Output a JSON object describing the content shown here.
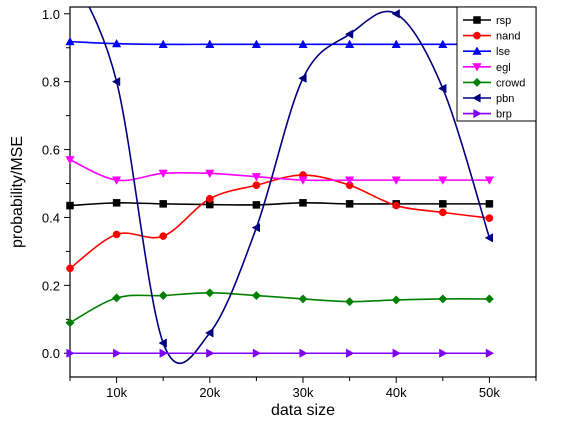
{
  "chart_data": {
    "type": "line",
    "xlabel": "data size",
    "ylabel": "probability/MSE",
    "xlim": [
      5000,
      55000
    ],
    "ylim": [
      -0.07,
      1.02
    ],
    "x_ticks": [
      10000,
      20000,
      30000,
      40000,
      50000
    ],
    "x_tick_labels": [
      "10k",
      "20k",
      "30k",
      "40k",
      "50k"
    ],
    "y_ticks": [
      0.0,
      0.2,
      0.4,
      0.6,
      0.8,
      1.0
    ],
    "y_tick_labels": [
      "0.0",
      "0.2",
      "0.4",
      "0.6",
      "0.8",
      "1.0"
    ],
    "grid": false,
    "legend_position": "top-right",
    "x": [
      5000,
      10000,
      15000,
      20000,
      25000,
      30000,
      35000,
      40000,
      45000,
      50000
    ],
    "series": [
      {
        "name": "rsp",
        "color": "#000000",
        "marker": "square",
        "values": [
          0.435,
          0.443,
          0.44,
          0.438,
          0.437,
          0.443,
          0.44,
          0.44,
          0.44,
          0.44
        ]
      },
      {
        "name": "nand",
        "color": "#ff0000",
        "marker": "circle",
        "values": [
          0.25,
          0.35,
          0.345,
          0.455,
          0.495,
          0.525,
          0.495,
          0.435,
          0.415,
          0.398
        ]
      },
      {
        "name": "lse",
        "color": "#0000ff",
        "marker": "triangle-up",
        "values": [
          0.918,
          0.912,
          0.91,
          0.91,
          0.91,
          0.91,
          0.91,
          0.91,
          0.91,
          0.91
        ]
      },
      {
        "name": "egl",
        "color": "#ff00ff",
        "marker": "triangle-down",
        "values": [
          0.57,
          0.51,
          0.53,
          0.53,
          0.52,
          0.51,
          0.51,
          0.51,
          0.51,
          0.51
        ]
      },
      {
        "name": "crowd",
        "color": "#008000",
        "marker": "diamond",
        "values": [
          0.09,
          0.163,
          0.17,
          0.178,
          0.17,
          0.16,
          0.152,
          0.157,
          0.16,
          0.16
        ]
      },
      {
        "name": "pbn",
        "color": "#000080",
        "marker": "triangle-left",
        "values": [
          1.13,
          0.8,
          0.03,
          0.06,
          0.37,
          0.81,
          0.94,
          1.0,
          0.78,
          0.34
        ]
      },
      {
        "name": "brp",
        "color": "#8000ff",
        "marker": "triangle-right",
        "values": [
          0.0,
          0.0,
          0.0,
          0.0,
          0.0,
          0.0,
          0.0,
          0.0,
          0.0,
          0.0
        ]
      }
    ]
  }
}
